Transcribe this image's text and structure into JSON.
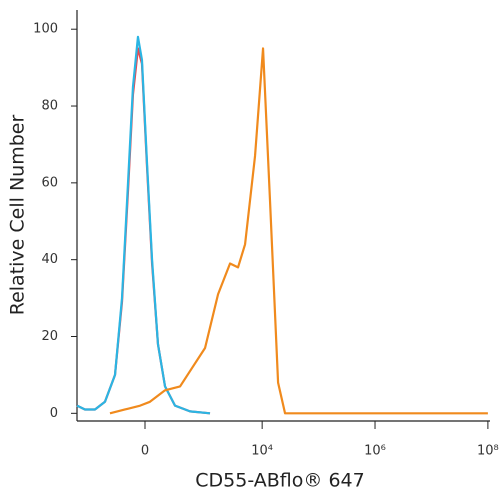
{
  "chart_data": {
    "type": "line",
    "xlabel": "CD55-ABflo® 647",
    "ylabel": "Relative Cell Number",
    "xscale": "arcsinh",
    "xcofactor": 168,
    "xlim": [
      -1342,
      109000000
    ],
    "xticks": [
      0,
      {
        "value": 10000,
        "label": "10⁴"
      },
      {
        "value": 1000000,
        "label": "10⁶"
      },
      {
        "value": 100000000,
        "label": "10⁸"
      }
    ],
    "ylim": [
      -2,
      105
    ],
    "yticks": [
      0,
      20,
      40,
      60,
      80,
      100
    ],
    "series": [
      {
        "color": "#e8484f",
        "x": [
          -1342,
          -966,
          -636,
          -414,
          -261,
          -182,
          -126,
          -86,
          -49,
          -21,
          14,
          49,
          93,
          153,
          261,
          514,
          1186
        ],
        "values": [
          2,
          1,
          1,
          3,
          10,
          29,
          58,
          83,
          95,
          91,
          64,
          39,
          18,
          7,
          2,
          0.5,
          0
        ]
      },
      {
        "color": "#2bb5e3",
        "x": [
          -1342,
          -966,
          -636,
          -414,
          -261,
          -182,
          -126,
          -86,
          -49,
          -21,
          14,
          49,
          93,
          153,
          261,
          514,
          1186
        ],
        "values": [
          2,
          1,
          1,
          3,
          10,
          30,
          60,
          85,
          98,
          92,
          65,
          40,
          18,
          7,
          2,
          0.5,
          0
        ]
      },
      {
        "color": "#f08a1d",
        "x": [
          -331,
          -153,
          -34,
          34,
          153,
          331,
          514,
          966,
          1650,
          2695,
          3738,
          4980,
          7480,
          10370,
          13810,
          19150,
          25470,
          46960,
          100000000
        ],
        "values": [
          0,
          1,
          2,
          3,
          6,
          7,
          11,
          17,
          31,
          39,
          38,
          44,
          67,
          95,
          55,
          8,
          0,
          0,
          0
        ]
      }
    ]
  }
}
